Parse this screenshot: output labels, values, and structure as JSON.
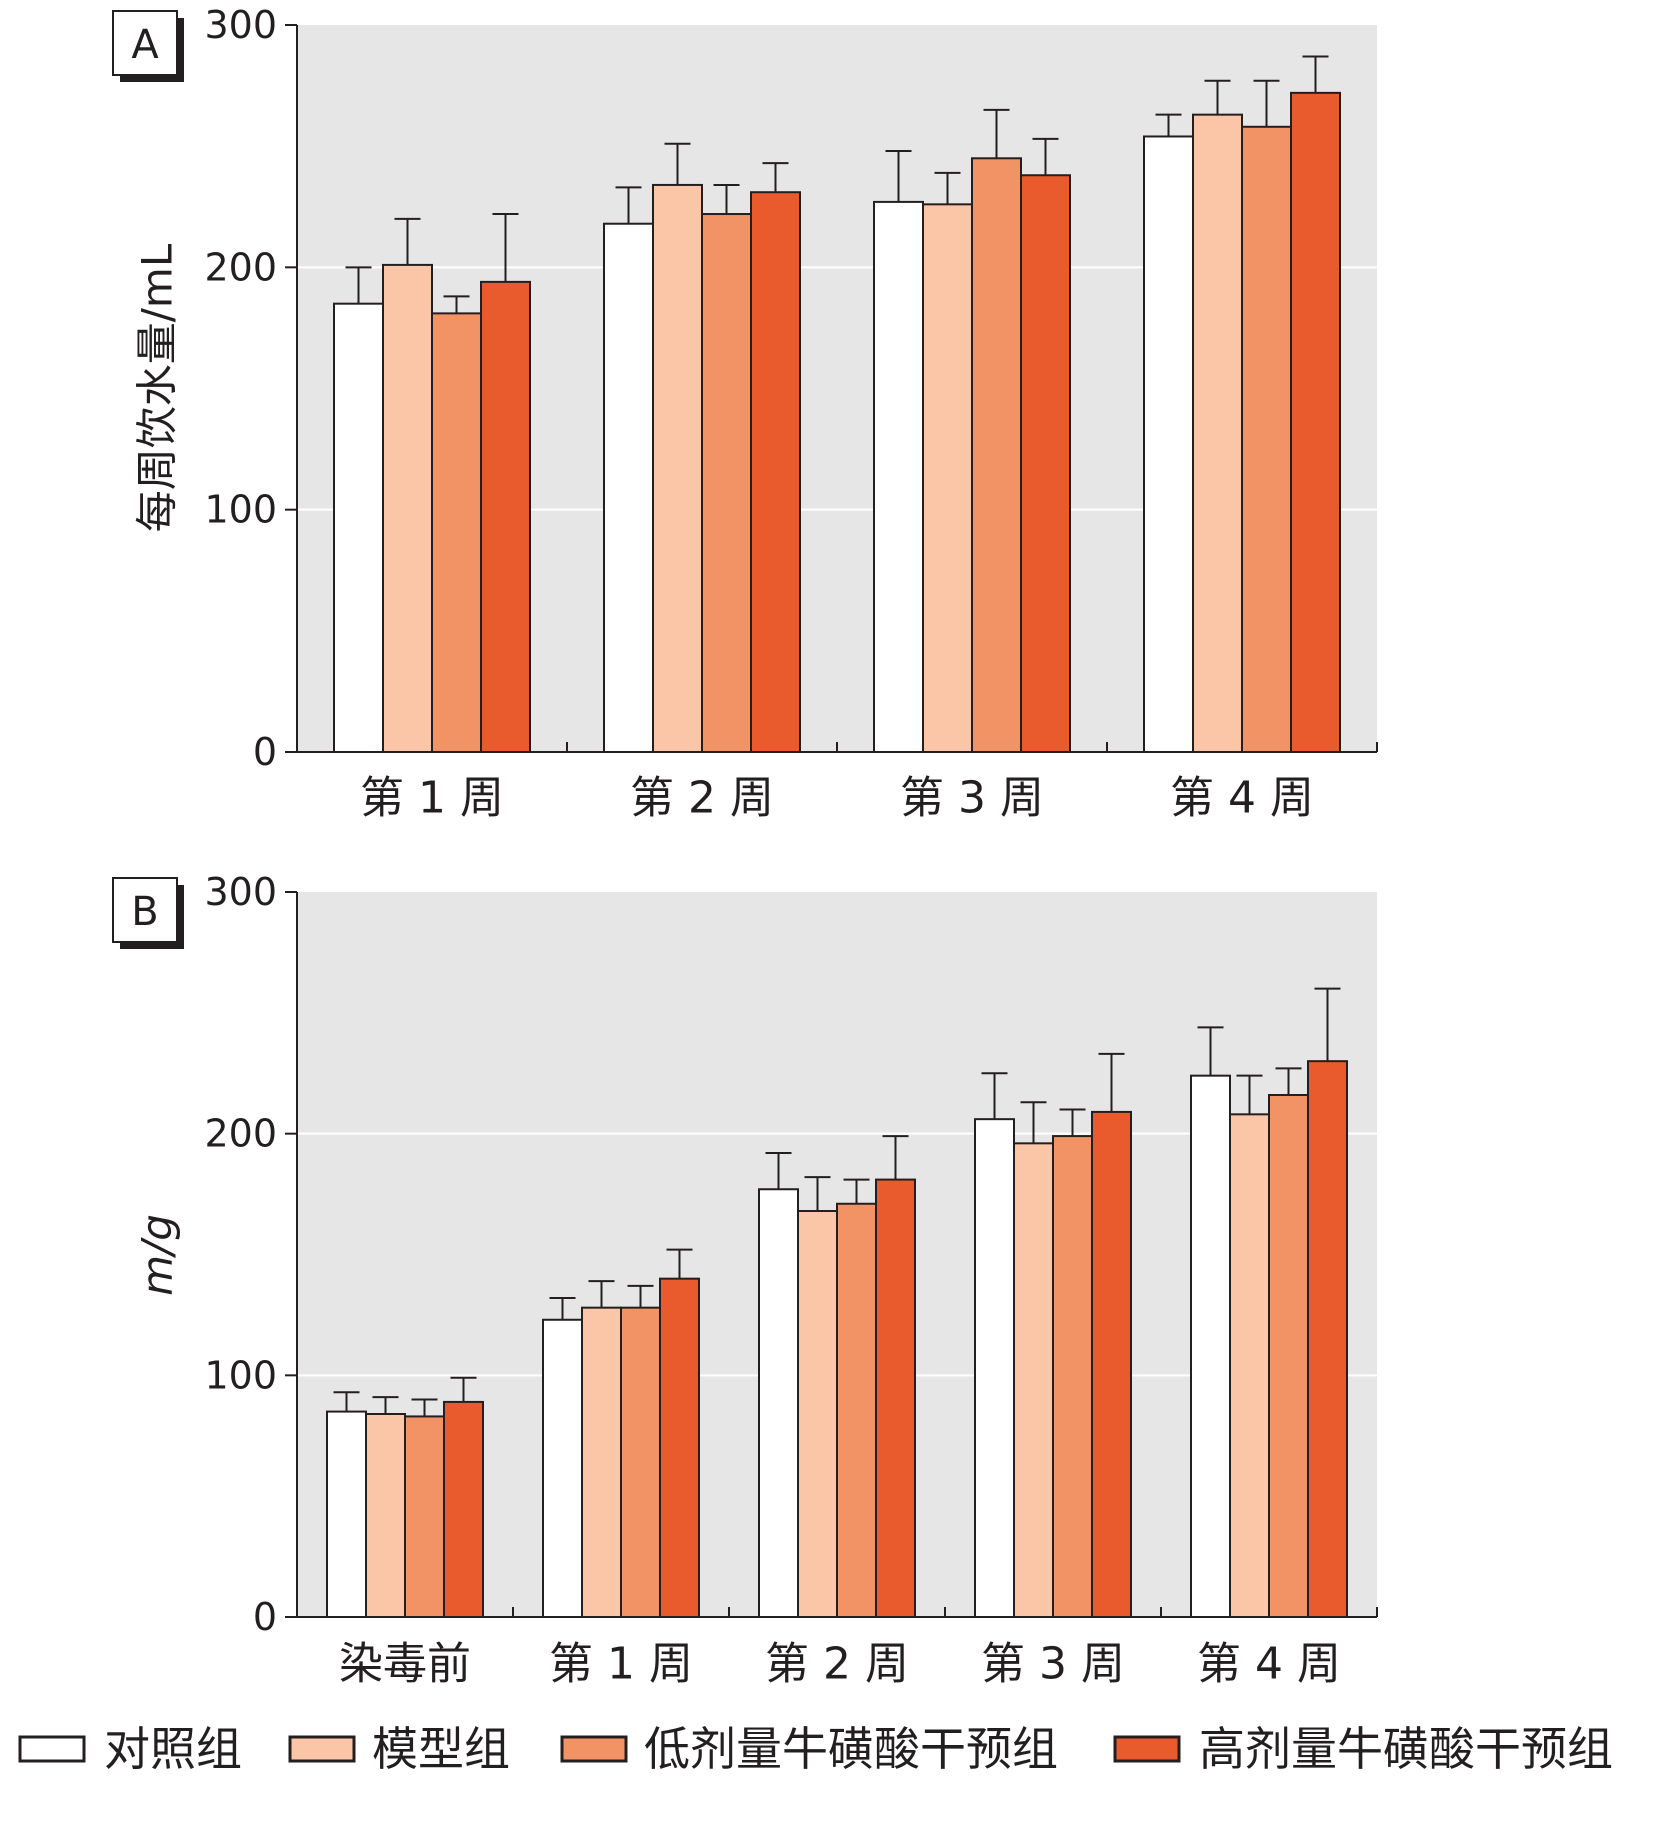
{
  "colors": {
    "plot_background": "#e6e6e7",
    "gridline": "#ffffff",
    "axis": "#231f20",
    "bar_outline": "#231f20",
    "series": [
      "#ffffff",
      "#fbc5a7",
      "#f29366",
      "#e95a2d"
    ]
  },
  "legend": {
    "placement": "bottom",
    "items": [
      "对照组",
      "模型组",
      "低剂量牛磺酸干预组",
      "高剂量牛磺酸干预组"
    ]
  },
  "chart_data": [
    {
      "type": "bar",
      "panel_label": "A",
      "ylabel": "每周饮水量/mL",
      "ylim": [
        0,
        300
      ],
      "yticks": [
        "0",
        "100",
        "200",
        "300"
      ],
      "grid": true,
      "error_bars": true,
      "categories": [
        "第 1 周",
        "第 2 周",
        "第 3 周",
        "第 4 周"
      ],
      "series": [
        {
          "name": "对照组",
          "values": [
            185,
            218,
            227,
            254
          ],
          "errors": [
            15,
            15,
            21,
            9
          ]
        },
        {
          "name": "模型组",
          "values": [
            201,
            234,
            226,
            263
          ],
          "errors": [
            19,
            17,
            13,
            14
          ]
        },
        {
          "name": "低剂量牛磺酸干预组",
          "values": [
            181,
            222,
            245,
            258
          ],
          "errors": [
            7,
            12,
            20,
            19
          ]
        },
        {
          "name": "高剂量牛磺酸干预组",
          "values": [
            194,
            231,
            238,
            272
          ],
          "errors": [
            28,
            12,
            15,
            15
          ]
        }
      ]
    },
    {
      "type": "bar",
      "panel_label": "B",
      "ylabel": "m/g",
      "ylim": [
        0,
        300
      ],
      "yticks": [
        "0",
        "100",
        "200",
        "300"
      ],
      "grid": true,
      "error_bars": true,
      "categories": [
        "染毒前",
        "第 1 周",
        "第 2 周",
        "第 3 周",
        "第 4 周"
      ],
      "series": [
        {
          "name": "对照组",
          "values": [
            85,
            123,
            177,
            206,
            224
          ],
          "errors": [
            8,
            9,
            15,
            19,
            20
          ]
        },
        {
          "name": "模型组",
          "values": [
            84,
            128,
            168,
            196,
            208
          ],
          "errors": [
            7,
            11,
            14,
            17,
            16
          ]
        },
        {
          "name": "低剂量牛磺酸干预组",
          "values": [
            83,
            128,
            171,
            199,
            216
          ],
          "errors": [
            7,
            9,
            10,
            11,
            11
          ]
        },
        {
          "name": "高剂量牛磺酸干预组",
          "values": [
            89,
            140,
            181,
            209,
            230
          ],
          "errors": [
            10,
            12,
            18,
            24,
            30
          ]
        }
      ]
    }
  ]
}
